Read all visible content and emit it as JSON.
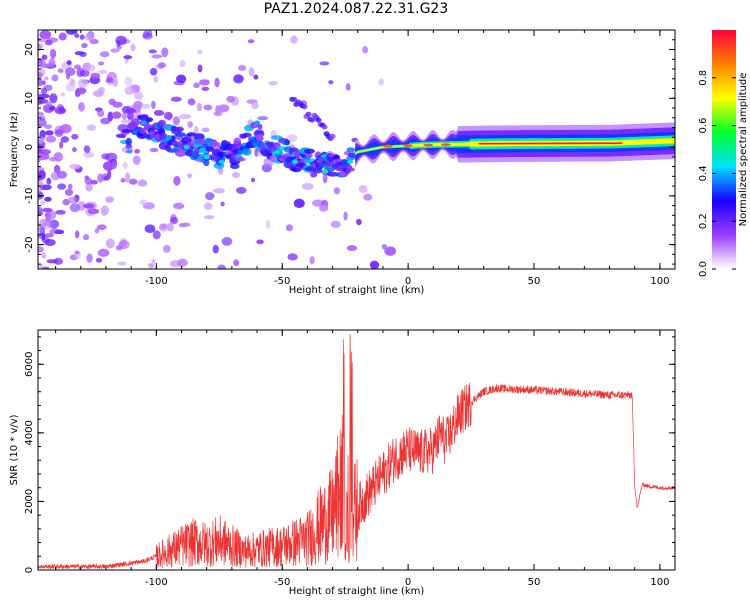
{
  "title": "PAZ1.2024.087.22.31.G23",
  "chart_data": [
    {
      "type": "heatmap",
      "xlabel": "Height of straight line (km)",
      "ylabel": "Frequency (Hz)",
      "xlim": [
        -147,
        106
      ],
      "ylim": [
        -25,
        24
      ],
      "xticks": [
        -100,
        -50,
        0,
        50,
        100
      ],
      "yticks": [
        -20,
        -10,
        0,
        10,
        20
      ],
      "colorbar": {
        "label": "Normalized spectral amplitude",
        "range": [
          0.0,
          1.0
        ],
        "ticks": [
          0.0,
          0.2,
          0.4,
          0.6,
          0.8
        ],
        "colormap": [
          "#ffffff",
          "#9a3cff",
          "#1a00ff",
          "#00e0ff",
          "#00ff2a",
          "#ffff00",
          "#ff8000",
          "#ff0040"
        ]
      },
      "ridge": {
        "description_values": [
          {
            "x": -110,
            "y": 5
          },
          {
            "x": -100,
            "y": 3
          },
          {
            "x": -90,
            "y": 1
          },
          {
            "x": -80,
            "y": -1
          },
          {
            "x": -70,
            "y": -2
          },
          {
            "x": -60,
            "y": 3
          },
          {
            "x": -55,
            "y": 0
          },
          {
            "x": -45,
            "y": -2
          },
          {
            "x": -35,
            "y": -4
          },
          {
            "x": -25,
            "y": -3
          },
          {
            "x": -20,
            "y": -1
          },
          {
            "x": -10,
            "y": 0
          },
          {
            "x": 10,
            "y": 0.5
          },
          {
            "x": 40,
            "y": 0.7
          },
          {
            "x": 80,
            "y": 0.8
          },
          {
            "x": 106,
            "y": 1.3
          }
        ]
      }
    },
    {
      "type": "line",
      "xlabel": "Height of straight line (km)",
      "ylabel": "SNR (10 * v/v)",
      "xlim": [
        -147,
        106
      ],
      "ylim": [
        0,
        7000
      ],
      "xticks": [
        -100,
        -50,
        0,
        50,
        100
      ],
      "yticks": [
        0,
        2000,
        4000,
        6000
      ],
      "color": "#ee3333",
      "series": [
        {
          "x": [
            -147,
            -120,
            -105,
            -100,
            -95,
            -90,
            -85,
            -80,
            -75,
            -70,
            -65,
            -60,
            -55,
            -50,
            -45,
            -40,
            -35,
            -30,
            -27,
            -25,
            -23,
            -20,
            -15,
            -10,
            -5,
            0,
            5,
            10,
            13,
            15,
            20,
            25,
            30,
            35,
            40,
            50,
            60,
            70,
            80,
            89,
            90,
            91,
            93,
            95,
            100,
            106
          ],
          "y": [
            100,
            100,
            250,
            400,
            550,
            700,
            800,
            750,
            850,
            700,
            550,
            600,
            650,
            700,
            800,
            900,
            1300,
            1600,
            2300,
            2700,
            1500,
            1800,
            2300,
            2800,
            3300,
            3500,
            3400,
            3500,
            4000,
            3700,
            4500,
            4900,
            5200,
            5300,
            5280,
            5250,
            5200,
            5150,
            5100,
            5100,
            2500,
            1800,
            2500,
            2450,
            2400,
            2400
          ]
        }
      ]
    }
  ]
}
